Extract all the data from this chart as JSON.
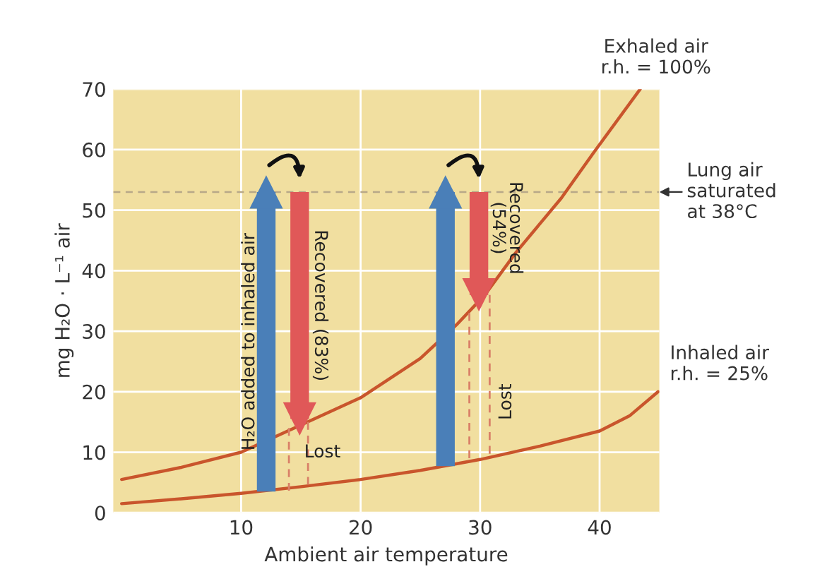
{
  "chart_data": {
    "type": "line",
    "xlabel": "Ambient air temperature",
    "ylabel": "mg H₂O · L⁻¹ air",
    "xlim": [
      -0.7,
      45
    ],
    "ylim": [
      0,
      70
    ],
    "xticks": [
      10,
      20,
      30,
      40
    ],
    "yticks": [
      0,
      10,
      20,
      30,
      40,
      50,
      60,
      70
    ],
    "grid": true,
    "legend": false,
    "marker": "none",
    "series": [
      {
        "name": "Exhaled air\nr.h. = 100%",
        "color": "#c9552c",
        "x": [
          0,
          5,
          10,
          15,
          20,
          25,
          28,
          30.4,
          33,
          36.8,
          39.5,
          43.4
        ],
        "values": [
          5.5,
          7.5,
          10,
          14.5,
          19,
          25.5,
          31,
          36,
          43,
          52,
          59.5,
          70
        ]
      },
      {
        "name": "Inhaled air\nr.h. = 25%",
        "color": "#c9552c",
        "x": [
          0,
          5,
          10,
          15,
          20,
          25,
          30,
          35,
          40,
          42.5,
          44.9
        ],
        "values": [
          1.5,
          2.3,
          3.2,
          4.3,
          5.5,
          7,
          8.8,
          11,
          13.5,
          16,
          20
        ]
      },
      {
        "color": "#d98068",
        "line_style": "dashed",
        "x": [
          14,
          14
        ],
        "values": [
          14,
          3.5
        ]
      },
      {
        "color": "#d98068",
        "line_style": "dashed",
        "x": [
          15.6,
          15.6
        ],
        "values": [
          15,
          3.8
        ]
      },
      {
        "color": "#d98068",
        "line_style": "dashed",
        "x": [
          29.1,
          29.1
        ],
        "values": [
          33,
          8.2
        ]
      },
      {
        "color": "#d98068",
        "line_style": "dashed",
        "x": [
          30.8,
          30.8
        ],
        "values": [
          36,
          8.8
        ]
      },
      {
        "color": "#4a7fb8",
        "marker": "triangle",
        "x": [
          12.1,
          12.1
        ],
        "values": [
          3.5,
          53
        ]
      },
      {
        "color": "#e05858",
        "marker": "triangle",
        "x": [
          14.9,
          14.9
        ],
        "values": [
          53,
          15.5
        ]
      },
      {
        "color": "#4a7fb8",
        "marker": "triangle",
        "x": [
          27.1,
          27.1
        ],
        "values": [
          7.7,
          53
        ]
      },
      {
        "color": "#e05858",
        "marker": "triangle",
        "x": [
          29.9,
          29.9
        ],
        "values": [
          53,
          36
        ]
      }
    ],
    "ref_lines": [
      {
        "axis": "y",
        "value": 53,
        "label": "Lung air\nsaturated\nat 38°C",
        "color": "#b8a888",
        "line_style": "dashed"
      }
    ],
    "annotations": [
      "H₂O added to inhaled air",
      "Recovered (83%)",
      "Lost",
      "Recovered\n(54%)",
      "Lost"
    ]
  }
}
